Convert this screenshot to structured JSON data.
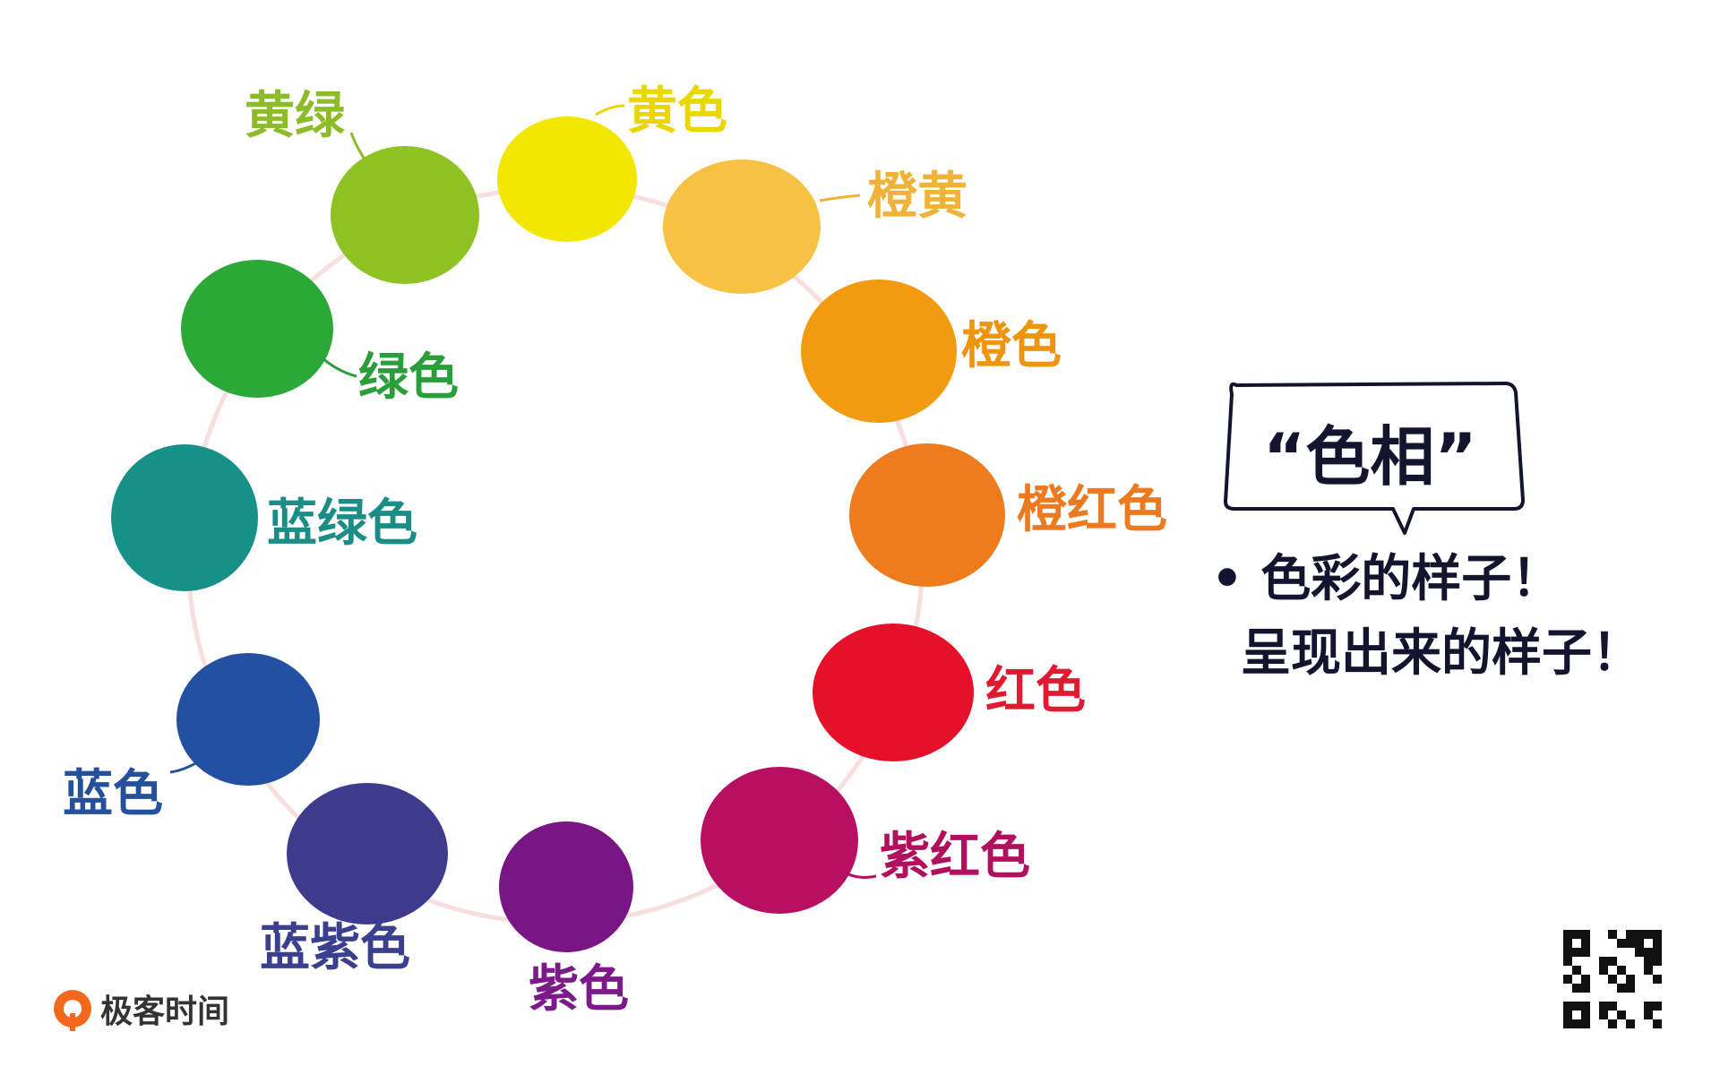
{
  "diagram": {
    "swatches": [
      {
        "label": "黄色",
        "color": "#f3e600",
        "text_color": "#e8d800"
      },
      {
        "label": "橙黄",
        "color": "#f7c244",
        "text_color": "#f0b33a"
      },
      {
        "label": "橙色",
        "color": "#f29a10",
        "text_color": "#ee9510"
      },
      {
        "label": "橙红色",
        "color": "#ee7b1e",
        "text_color": "#ec7a20"
      },
      {
        "label": "红色",
        "color": "#e5112a",
        "text_color": "#e01a30"
      },
      {
        "label": "紫红色",
        "color": "#b90f62",
        "text_color": "#b0105e"
      },
      {
        "label": "紫色",
        "color": "#7a1585",
        "text_color": "#7b1a88"
      },
      {
        "label": "蓝紫色",
        "color": "#3e3b8f",
        "text_color": "#3a3f8e"
      },
      {
        "label": "蓝色",
        "color": "#2350a0",
        "text_color": "#24509c"
      },
      {
        "label": "蓝绿色",
        "color": "#169088",
        "text_color": "#1a8e86"
      },
      {
        "label": "绿色",
        "color": "#2ba838",
        "text_color": "#2a9e3a"
      },
      {
        "label": "黄绿",
        "color": "#8ec323",
        "text_color": "#8cbc2a"
      }
    ],
    "callout": {
      "title": "“色相”",
      "bullet_line1": "• 色彩的样子！",
      "bullet_line2": "呈现出来的样子！"
    }
  },
  "brand": {
    "name": "极客时间",
    "icon": "geek-time-logo-icon",
    "color": "#f2691e"
  },
  "qr_code": {
    "icon": "qr-code-icon"
  }
}
